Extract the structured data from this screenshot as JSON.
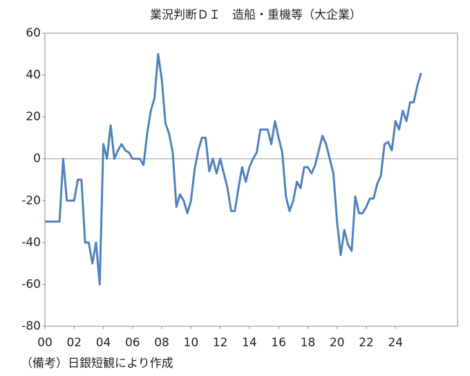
{
  "chart_data": {
    "type": "line",
    "title": "業況判断ＤＩ　造船・重機等（大企業）",
    "note": "（備考）日銀短観により作成",
    "x": [
      2000,
      2000.25,
      2000.5,
      2000.75,
      2001,
      2001.25,
      2001.5,
      2001.75,
      2002,
      2002.25,
      2002.5,
      2002.75,
      2003,
      2003.25,
      2003.5,
      2003.75,
      2004,
      2004.25,
      2004.5,
      2004.75,
      2005,
      2005.25,
      2005.5,
      2005.75,
      2006,
      2006.25,
      2006.5,
      2006.75,
      2007,
      2007.25,
      2007.5,
      2007.75,
      2008,
      2008.25,
      2008.5,
      2008.75,
      2009,
      2009.25,
      2009.5,
      2009.75,
      2010,
      2010.25,
      2010.5,
      2010.75,
      2011,
      2011.25,
      2011.5,
      2011.75,
      2012,
      2012.25,
      2012.5,
      2012.75,
      2013,
      2013.25,
      2013.5,
      2013.75,
      2014,
      2014.25,
      2014.5,
      2014.75,
      2015,
      2015.25,
      2015.5,
      2015.75,
      2016,
      2016.25,
      2016.5,
      2016.75,
      2017,
      2017.25,
      2017.5,
      2017.75,
      2018,
      2018.25,
      2018.5,
      2018.75,
      2019,
      2019.25,
      2019.5,
      2019.75,
      2020,
      2020.25,
      2020.5,
      2020.75,
      2021,
      2021.25,
      2021.5,
      2021.75,
      2022,
      2022.25,
      2022.5,
      2022.75,
      2023,
      2023.25,
      2023.5,
      2023.75,
      2024,
      2024.25,
      2024.5,
      2024.75,
      2025,
      2025.25,
      2025.5,
      2025.75
    ],
    "series": [
      {
        "color": "#4f81bd",
        "values": [
          -30,
          -30,
          -30,
          -30,
          -30,
          0,
          -20,
          -20,
          -20,
          -10,
          -10,
          -40,
          -40,
          -50,
          -40,
          -60,
          7,
          0,
          16,
          0,
          4,
          7,
          4,
          3,
          0,
          0,
          0,
          -3,
          12,
          23,
          29,
          50,
          38,
          17,
          12,
          3,
          -23,
          -17,
          -20,
          -26,
          -20,
          -5,
          4,
          10,
          10,
          -6,
          0,
          -7,
          0,
          -7,
          -14,
          -25,
          -25,
          -14,
          -4,
          -11,
          -4,
          0,
          3,
          14,
          14,
          14,
          7,
          18,
          10,
          3,
          -18,
          -25,
          -20,
          -11,
          -14,
          -4,
          -4,
          -7,
          -3,
          4,
          11,
          7,
          0,
          -7,
          -30,
          -46,
          -34,
          -41,
          -44,
          -18,
          -26,
          -26,
          -23,
          -19,
          -19,
          -12,
          -8,
          7,
          8,
          4,
          18,
          14,
          23,
          18,
          27,
          27,
          35,
          41
        ]
      }
    ],
    "xlim": [
      2000,
      2028.25
    ],
    "xticks": [
      {
        "value": 2000,
        "label": "00"
      },
      {
        "value": 2002,
        "label": "02"
      },
      {
        "value": 2004,
        "label": "04"
      },
      {
        "value": 2006,
        "label": "06"
      },
      {
        "value": 2008,
        "label": "08"
      },
      {
        "value": 2010,
        "label": "10"
      },
      {
        "value": 2012,
        "label": "12"
      },
      {
        "value": 2014,
        "label": "14"
      },
      {
        "value": 2016,
        "label": "16"
      },
      {
        "value": 2018,
        "label": "18"
      },
      {
        "value": 2020,
        "label": "20"
      },
      {
        "value": 2022,
        "label": "22"
      },
      {
        "value": 2024,
        "label": "24"
      }
    ],
    "ylim": [
      -80,
      60
    ],
    "yticks": [
      -80,
      -60,
      -40,
      -20,
      0,
      20,
      40,
      60
    ]
  }
}
